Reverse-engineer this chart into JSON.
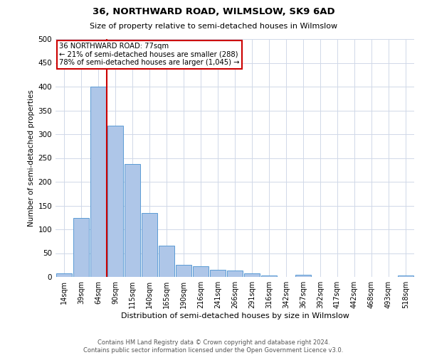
{
  "title1": "36, NORTHWARD ROAD, WILMSLOW, SK9 6AD",
  "title2": "Size of property relative to semi-detached houses in Wilmslow",
  "xlabel": "Distribution of semi-detached houses by size in Wilmslow",
  "ylabel": "Number of semi-detached properties",
  "footnote": "Contains HM Land Registry data © Crown copyright and database right 2024.\nContains public sector information licensed under the Open Government Licence v3.0.",
  "bar_labels": [
    "14sqm",
    "39sqm",
    "64sqm",
    "90sqm",
    "115sqm",
    "140sqm",
    "165sqm",
    "190sqm",
    "216sqm",
    "241sqm",
    "266sqm",
    "291sqm",
    "316sqm",
    "342sqm",
    "367sqm",
    "392sqm",
    "417sqm",
    "442sqm",
    "468sqm",
    "493sqm",
    "518sqm"
  ],
  "bar_values": [
    8,
    124,
    400,
    318,
    237,
    135,
    65,
    26,
    22,
    15,
    13,
    7,
    3,
    0,
    4,
    0,
    0,
    0,
    0,
    0,
    3
  ],
  "bar_color": "#aec6e8",
  "bar_edgecolor": "#5b9bd5",
  "property_bin_index": 2,
  "annotation_title": "36 NORTHWARD ROAD: 77sqm",
  "annotation_line1": "← 21% of semi-detached houses are smaller (288)",
  "annotation_line2": "78% of semi-detached houses are larger (1,045) →",
  "vline_color": "#cc0000",
  "annotation_box_edgecolor": "#cc0000",
  "ylim": [
    0,
    500
  ],
  "yticks": [
    0,
    50,
    100,
    150,
    200,
    250,
    300,
    350,
    400,
    450,
    500
  ],
  "background_color": "#ffffff",
  "grid_color": "#d0d8e8"
}
